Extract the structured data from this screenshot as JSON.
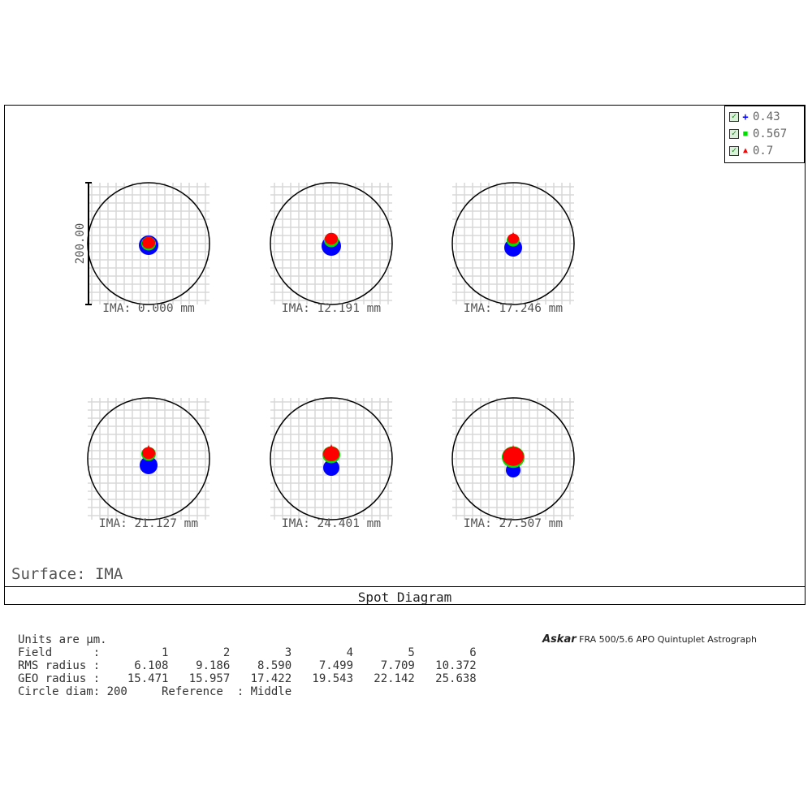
{
  "surface_label": "Surface: IMA",
  "diagram_title": "Spot Diagram",
  "legend": [
    {
      "checked": true,
      "marker": "+",
      "marker_color": "#0000ff",
      "label": "0.43"
    },
    {
      "checked": true,
      "marker": "■",
      "marker_color": "#00dd00",
      "label": "0.567"
    },
    {
      "checked": true,
      "marker": "▲",
      "marker_color": "#ff0000",
      "label": "0.7"
    }
  ],
  "scale_bar_label": "200.00",
  "fields": [
    {
      "ima_label": "IMA: 0.000 mm"
    },
    {
      "ima_label": "IMA: 12.191 mm"
    },
    {
      "ima_label": "IMA: 17.246 mm"
    },
    {
      "ima_label": "IMA: 21.127 mm"
    },
    {
      "ima_label": "IMA: 24.401 mm"
    },
    {
      "ima_label": "IMA: 27.507 mm"
    }
  ],
  "stats_text": {
    "units": "Units are µm.",
    "field_row": "Field      :         1        2        3        4        5        6",
    "rms_row": "RMS radius :     6.108    9.186    8.590    7.499    7.709   10.372",
    "geo_row": "GEO radius :    15.471   15.957   17.422   19.543   22.142   25.638",
    "circle_row": "Circle diam: 200     Reference  : Middle"
  },
  "brand": {
    "logo": "Askar",
    "model": "FRA 500/5.6 APO Quintuplet Astrograph"
  },
  "colors": {
    "wavelength_1": "#0000ff",
    "wavelength_2": "#00dd00",
    "wavelength_3": "#ff0000",
    "grid": "#d8d8d8"
  }
}
